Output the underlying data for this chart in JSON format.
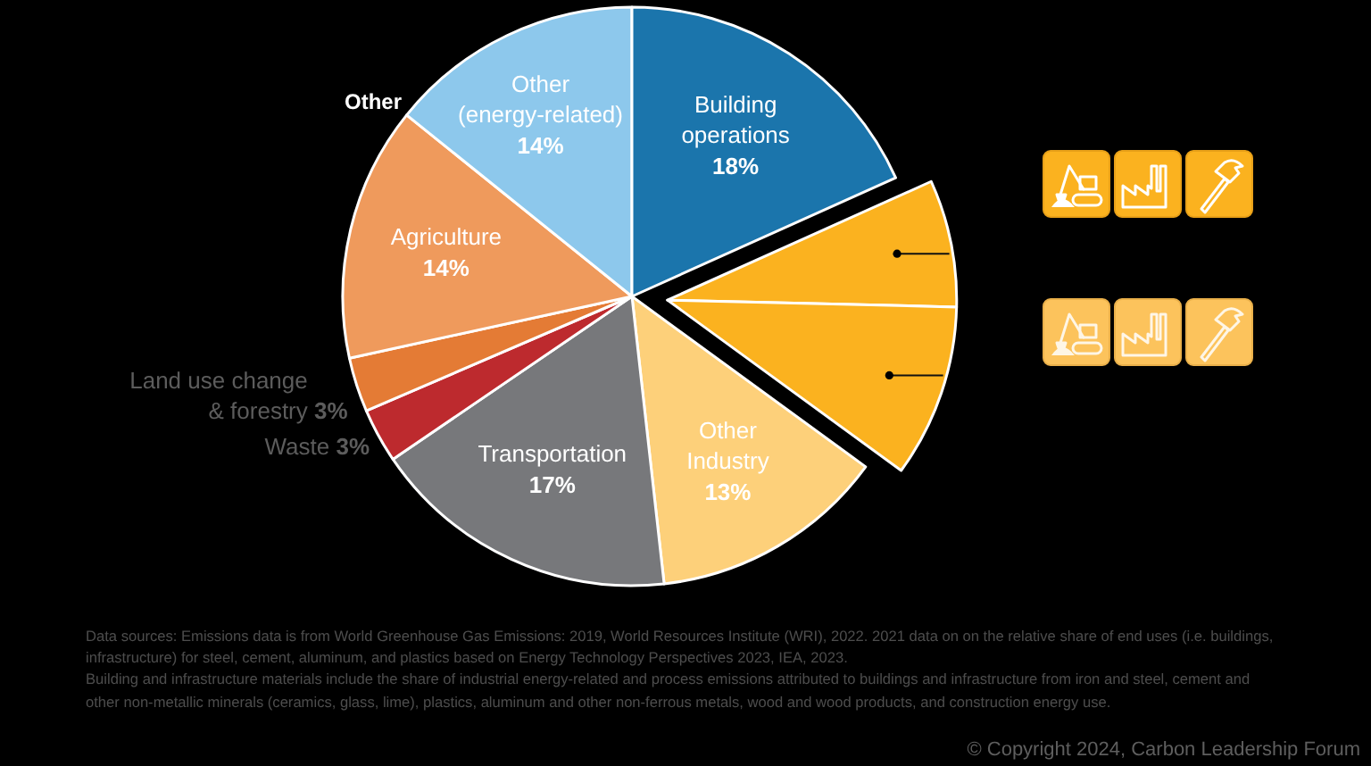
{
  "chart_data": {
    "type": "pie",
    "categories": [
      "Building operations",
      null,
      null,
      "Other Industry",
      "Transportation",
      "Waste",
      "Land use change & forestry",
      "Agriculture",
      "Other (energy-related)"
    ],
    "values": [
      18,
      7,
      9.5,
      13,
      17,
      3,
      3,
      14,
      14
    ],
    "value_labels": [
      "18%",
      null,
      null,
      "13%",
      "17%",
      "3%",
      "3%",
      "14%",
      "14%"
    ],
    "colors": [
      "#1b75ac",
      "#fbb21f",
      "#fbb21f",
      "#fdd07a",
      "#77787b",
      "#bd2a2e",
      "#e47b35",
      "#ef9a5c",
      "#8dc8ec"
    ],
    "annotations": [
      "Other",
      "Data sources: Emissions data is from World Greenhouse Gas Emissions: 2019, World Resources Institute (WRI), 2022. 2021 data on on the relative share of end uses (i.e. buildings, infrastructure) for steel, cement, aluminum, and plastics based on Energy Technology Perspectives 2023, IEA, 2023.",
      "Building and infrastructure materials include the share of industrial energy-related and process emissions attributed to buildings and infrastructure from iron and steel, cement and other non-metallic minerals (ceramics, glass, lime), plastics, aluminum and other non-ferrous metals, wood and wood products, and construction energy use.",
      "© Copyright 2024, Carbon Leadership Forum"
    ]
  }
}
